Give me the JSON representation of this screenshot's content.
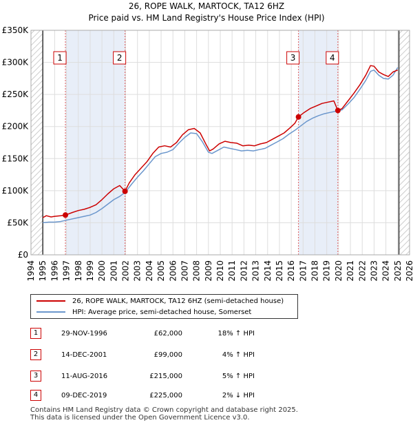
{
  "title_line1": "26, ROPE WALK, MARTOCK, TA12 6HZ",
  "title_line2": "Price paid vs. HM Land Registry's House Price Index (HPI)",
  "colors": {
    "price_line": "#cc0000",
    "hpi_line": "#6a96cc",
    "shade": "#e8eef8",
    "marker_border": "#cc0000",
    "grid": "#dddddd"
  },
  "chart_data": {
    "type": "line",
    "xlim": [
      1994,
      2026
    ],
    "ylim": [
      0,
      350000
    ],
    "x_ticks": [
      1994,
      1995,
      1996,
      1997,
      1998,
      1999,
      2000,
      2001,
      2002,
      2003,
      2004,
      2005,
      2006,
      2007,
      2008,
      2009,
      2010,
      2011,
      2012,
      2013,
      2014,
      2015,
      2016,
      2017,
      2018,
      2019,
      2020,
      2021,
      2022,
      2023,
      2024,
      2025,
      2026
    ],
    "y_ticks": [
      {
        "value": 0,
        "label": "£0"
      },
      {
        "value": 50000,
        "label": "£50K"
      },
      {
        "value": 100000,
        "label": "£100K"
      },
      {
        "value": 150000,
        "label": "£150K"
      },
      {
        "value": 200000,
        "label": "£200K"
      },
      {
        "value": 250000,
        "label": "£250K"
      },
      {
        "value": 300000,
        "label": "£300K"
      },
      {
        "value": 350000,
        "label": "£350K"
      }
    ],
    "data_start": 1995,
    "data_end": 2025.1,
    "shaded_periods": [
      [
        1996.91,
        2001.95
      ],
      [
        2016.61,
        2019.94
      ]
    ],
    "series": [
      {
        "name": "26, ROPE WALK, MARTOCK, TA12 6HZ (semi-detached house)",
        "color": "#cc0000",
        "points": [
          [
            1995.0,
            58000
          ],
          [
            1995.3,
            61000
          ],
          [
            1995.7,
            59000
          ],
          [
            1996.0,
            60000
          ],
          [
            1996.5,
            61000
          ],
          [
            1996.91,
            62000
          ],
          [
            1997.5,
            66000
          ],
          [
            1998.0,
            69000
          ],
          [
            1998.5,
            71000
          ],
          [
            1999.0,
            74000
          ],
          [
            1999.5,
            78000
          ],
          [
            2000.0,
            86000
          ],
          [
            2000.5,
            95000
          ],
          [
            2001.0,
            103000
          ],
          [
            2001.5,
            108000
          ],
          [
            2001.95,
            99000
          ],
          [
            2002.3,
            112000
          ],
          [
            2002.8,
            125000
          ],
          [
            2003.3,
            135000
          ],
          [
            2003.8,
            145000
          ],
          [
            2004.3,
            158000
          ],
          [
            2004.8,
            168000
          ],
          [
            2005.3,
            170000
          ],
          [
            2005.8,
            168000
          ],
          [
            2006.3,
            175000
          ],
          [
            2006.8,
            187000
          ],
          [
            2007.3,
            195000
          ],
          [
            2007.8,
            197000
          ],
          [
            2008.3,
            190000
          ],
          [
            2008.8,
            172000
          ],
          [
            2009.1,
            162000
          ],
          [
            2009.4,
            165000
          ],
          [
            2009.9,
            173000
          ],
          [
            2010.4,
            177000
          ],
          [
            2010.9,
            175000
          ],
          [
            2011.4,
            174000
          ],
          [
            2011.9,
            170000
          ],
          [
            2012.4,
            171000
          ],
          [
            2012.9,
            170000
          ],
          [
            2013.4,
            173000
          ],
          [
            2013.9,
            175000
          ],
          [
            2014.4,
            180000
          ],
          [
            2014.9,
            185000
          ],
          [
            2015.4,
            190000
          ],
          [
            2015.9,
            198000
          ],
          [
            2016.3,
            205000
          ],
          [
            2016.61,
            215000
          ],
          [
            2017.1,
            222000
          ],
          [
            2017.6,
            228000
          ],
          [
            2018.1,
            232000
          ],
          [
            2018.6,
            236000
          ],
          [
            2019.1,
            238000
          ],
          [
            2019.6,
            240000
          ],
          [
            2019.94,
            225000
          ],
          [
            2020.3,
            228000
          ],
          [
            2020.8,
            240000
          ],
          [
            2021.3,
            252000
          ],
          [
            2021.8,
            265000
          ],
          [
            2022.3,
            280000
          ],
          [
            2022.7,
            295000
          ],
          [
            2023.0,
            294000
          ],
          [
            2023.4,
            285000
          ],
          [
            2023.8,
            281000
          ],
          [
            2024.2,
            278000
          ],
          [
            2024.6,
            285000
          ],
          [
            2025.0,
            288000
          ]
        ]
      },
      {
        "name": "HPI: Average price, semi-detached house, Somerset",
        "color": "#6a96cc",
        "points": [
          [
            1995.0,
            50000
          ],
          [
            1995.5,
            51000
          ],
          [
            1996.0,
            51000
          ],
          [
            1996.5,
            52000
          ],
          [
            1997.0,
            54000
          ],
          [
            1997.5,
            56000
          ],
          [
            1998.0,
            58000
          ],
          [
            1998.5,
            60000
          ],
          [
            1999.0,
            62000
          ],
          [
            1999.5,
            66000
          ],
          [
            2000.0,
            72000
          ],
          [
            2000.5,
            79000
          ],
          [
            2001.0,
            86000
          ],
          [
            2001.5,
            91000
          ],
          [
            2002.0,
            98000
          ],
          [
            2002.5,
            110000
          ],
          [
            2003.0,
            121000
          ],
          [
            2003.5,
            131000
          ],
          [
            2004.0,
            142000
          ],
          [
            2004.5,
            153000
          ],
          [
            2005.0,
            158000
          ],
          [
            2005.5,
            160000
          ],
          [
            2006.0,
            164000
          ],
          [
            2006.5,
            174000
          ],
          [
            2007.0,
            183000
          ],
          [
            2007.5,
            190000
          ],
          [
            2008.0,
            189000
          ],
          [
            2008.5,
            176000
          ],
          [
            2009.0,
            160000
          ],
          [
            2009.3,
            158000
          ],
          [
            2009.8,
            163000
          ],
          [
            2010.3,
            168000
          ],
          [
            2010.8,
            166000
          ],
          [
            2011.3,
            164000
          ],
          [
            2011.8,
            162000
          ],
          [
            2012.3,
            163000
          ],
          [
            2012.8,
            162000
          ],
          [
            2013.3,
            164000
          ],
          [
            2013.8,
            166000
          ],
          [
            2014.3,
            171000
          ],
          [
            2014.8,
            176000
          ],
          [
            2015.3,
            181000
          ],
          [
            2015.8,
            188000
          ],
          [
            2016.3,
            194000
          ],
          [
            2016.8,
            201000
          ],
          [
            2017.3,
            208000
          ],
          [
            2017.8,
            213000
          ],
          [
            2018.3,
            217000
          ],
          [
            2018.8,
            220000
          ],
          [
            2019.3,
            222000
          ],
          [
            2019.8,
            224000
          ],
          [
            2020.3,
            226000
          ],
          [
            2020.8,
            235000
          ],
          [
            2021.3,
            245000
          ],
          [
            2021.8,
            258000
          ],
          [
            2022.3,
            272000
          ],
          [
            2022.7,
            286000
          ],
          [
            2023.0,
            288000
          ],
          [
            2023.4,
            280000
          ],
          [
            2023.8,
            275000
          ],
          [
            2024.2,
            274000
          ],
          [
            2024.6,
            280000
          ],
          [
            2025.0,
            292000
          ]
        ]
      }
    ],
    "transactions": [
      {
        "num": "1",
        "x": 1996.91,
        "price": 62000
      },
      {
        "num": "2",
        "x": 2001.95,
        "price": 99000
      },
      {
        "num": "3",
        "x": 2016.61,
        "price": 215000
      },
      {
        "num": "4",
        "x": 2019.94,
        "price": 225000
      }
    ]
  },
  "legend": {
    "price_label": "26, ROPE WALK, MARTOCK, TA12 6HZ (semi-detached house)",
    "hpi_label": "HPI: Average price, semi-detached house, Somerset"
  },
  "table": [
    {
      "num": "1",
      "date": "29-NOV-1996",
      "price": "£62,000",
      "hpi": "18% ↑ HPI"
    },
    {
      "num": "2",
      "date": "14-DEC-2001",
      "price": "£99,000",
      "hpi": "4% ↑ HPI"
    },
    {
      "num": "3",
      "date": "11-AUG-2016",
      "price": "£215,000",
      "hpi": "5% ↑ HPI"
    },
    {
      "num": "4",
      "date": "09-DEC-2019",
      "price": "£225,000",
      "hpi": "2% ↓ HPI"
    }
  ],
  "footer": {
    "line1": "Contains HM Land Registry data © Crown copyright and database right 2025.",
    "line2": "This data is licensed under the Open Government Licence v3.0."
  }
}
